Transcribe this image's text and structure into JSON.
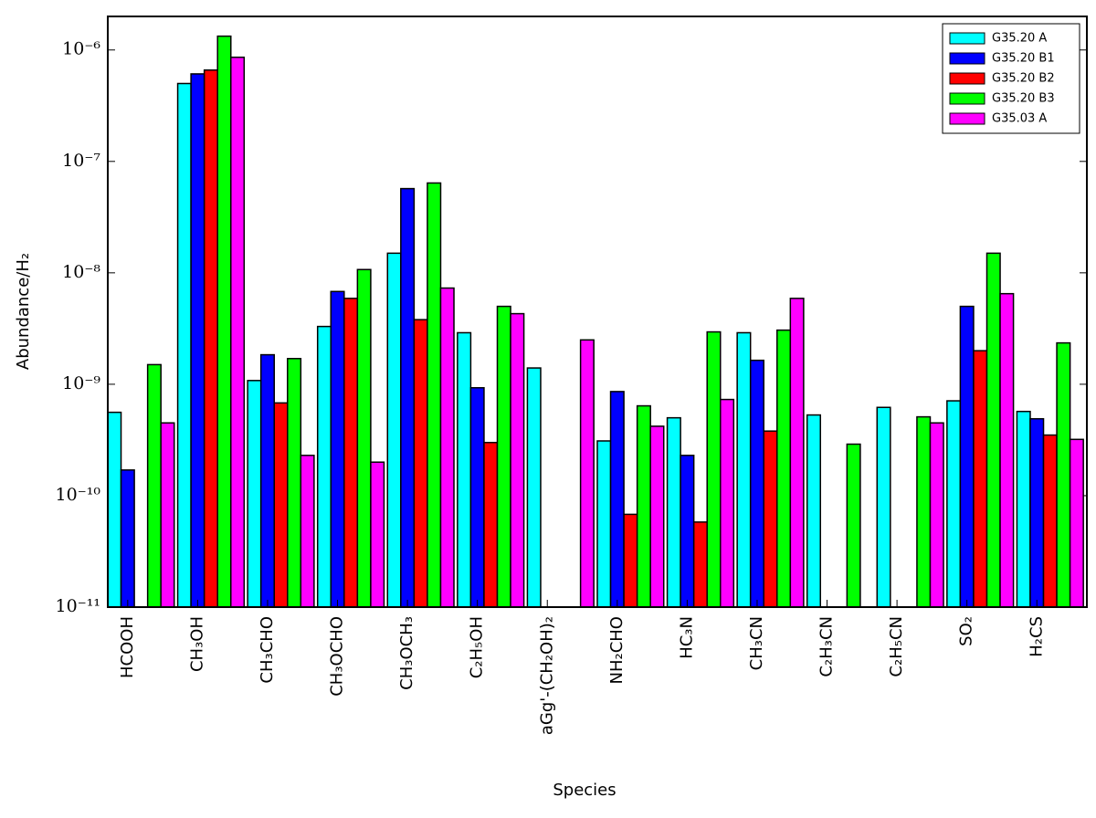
{
  "chart_data": {
    "type": "bar",
    "log": true,
    "legend": "upper right",
    "x_label": "Species",
    "y_label": "Abundance/H₂",
    "categories": [
      "HCOOH",
      "CH₃OH",
      "CH₃CHO",
      "CH₃OCHO",
      "CH₃OCH₃",
      "C₂H₅OH",
      "aGg'-(CH₂OH)₂",
      "NH₂CHO",
      "HC₃N",
      "CH₃CN",
      "C₂H₃CN",
      "C₂H₅CN",
      "SO₂",
      "H₂CS"
    ],
    "series": [
      {
        "name": "G35.20 A",
        "color": "#00ffff",
        "values": [
          5.6e-10,
          5e-07,
          1.08e-09,
          3.3e-09,
          1.5e-08,
          2.9e-09,
          1.4e-09,
          3.1e-10,
          5e-10,
          2.9e-09,
          5.3e-10,
          6.2e-10,
          7.1e-10,
          5.7e-10
        ]
      },
      {
        "name": "G35.20 B1",
        "color": "#0000ff",
        "values": [
          1.7e-10,
          6.1e-07,
          1.84e-09,
          6.8e-09,
          5.7e-08,
          9.3e-10,
          null,
          8.6e-10,
          2.3e-10,
          1.64e-09,
          null,
          null,
          5e-09,
          4.9e-10
        ]
      },
      {
        "name": "G35.20 B2",
        "color": "#ff0000",
        "values": [
          null,
          6.6e-07,
          6.8e-10,
          5.9e-09,
          3.8e-09,
          3e-10,
          null,
          6.8e-11,
          5.8e-11,
          3.8e-10,
          null,
          null,
          2e-09,
          3.5e-10
        ]
      },
      {
        "name": "G35.20 B3",
        "color": "#00ff00",
        "values": [
          1.5e-09,
          1.33e-06,
          1.7e-09,
          1.07e-08,
          6.4e-08,
          5e-09,
          null,
          6.4e-10,
          2.95e-09,
          3.06e-09,
          2.9e-10,
          5.1e-10,
          1.5e-08,
          2.35e-09
        ]
      },
      {
        "name": "G35.03 A",
        "color": "#ff00ff",
        "values": [
          4.5e-10,
          8.6e-07,
          2.3e-10,
          2e-10,
          7.3e-09,
          4.3e-09,
          2.5e-09,
          4.2e-10,
          7.3e-10,
          5.9e-09,
          null,
          4.5e-10,
          6.5e-09,
          3.2e-10
        ]
      }
    ],
    "ylim": [
      1e-11,
      2e-06
    ],
    "yticks": [
      {
        "value": 1e-11,
        "label": "10⁻¹¹"
      },
      {
        "value": 1e-10,
        "label": "10⁻¹⁰"
      },
      {
        "value": 1e-09,
        "label": "10⁻⁹"
      },
      {
        "value": 1e-08,
        "label": "10⁻⁸"
      },
      {
        "value": 1e-07,
        "label": "10⁻⁷"
      },
      {
        "value": 1e-06,
        "label": "10⁻⁶"
      }
    ]
  }
}
